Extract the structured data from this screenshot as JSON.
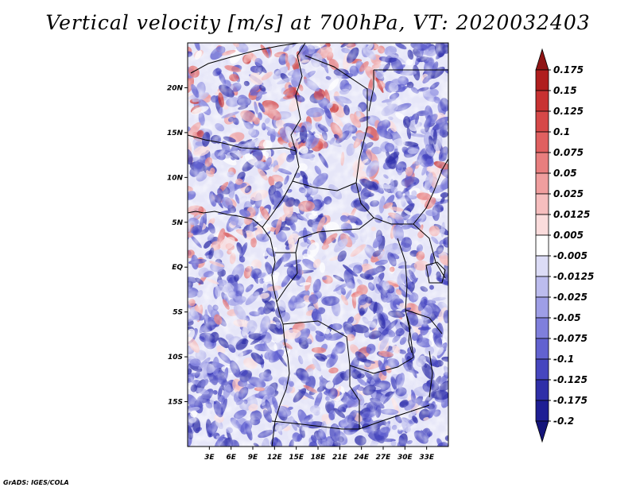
{
  "title": "Vertical velocity [m/s] at 700hPa, VT: 2020032403",
  "credit": "GrADS: IGES/COLA",
  "map": {
    "projection": "latlon",
    "lon_range": [
      0,
      36
    ],
    "lat_range": [
      -20,
      25
    ],
    "lon_ticks": [
      3,
      6,
      9,
      12,
      15,
      18,
      21,
      24,
      27,
      30,
      33
    ],
    "lon_tick_labels": [
      "3E",
      "6E",
      "9E",
      "12E",
      "15E",
      "18E",
      "21E",
      "24E",
      "27E",
      "30E",
      "33E"
    ],
    "lat_ticks": [
      20,
      15,
      10,
      5,
      0,
      -5,
      -10,
      -15
    ],
    "lat_tick_labels": [
      "20N",
      "15N",
      "10N",
      "5N",
      "EQ",
      "5S",
      "10S",
      "15S"
    ],
    "field": "vertical velocity",
    "units": "m/s",
    "level": "700hPa",
    "valid_time": "2020032403"
  },
  "colorbar": {
    "levels": [
      "0.175",
      "0.15",
      "0.125",
      "0.1",
      "0.075",
      "0.05",
      "0.025",
      "0.0125",
      "0.005",
      "-0.005",
      "-0.0125",
      "-0.025",
      "-0.05",
      "-0.075",
      "-0.1",
      "-0.125",
      "-0.175",
      "-0.2"
    ],
    "colors": [
      "#8f1515",
      "#b01e1e",
      "#c83232",
      "#d64848",
      "#e06060",
      "#e87e7e",
      "#f09e9e",
      "#f6bebe",
      "#fbdcdc",
      "#ffffff",
      "#dcdcf6",
      "#bcbcee",
      "#9e9ee6",
      "#7f7fdc",
      "#6262d0",
      "#4646bf",
      "#2f2fa8",
      "#1e1e94",
      "#15157a"
    ]
  }
}
